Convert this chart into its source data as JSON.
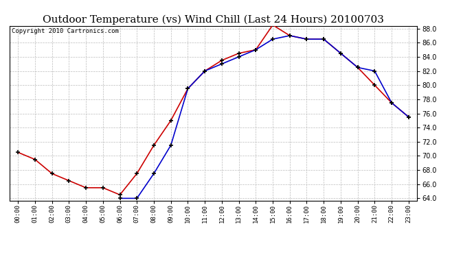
{
  "title": "Outdoor Temperature (vs) Wind Chill (Last 24 Hours) 20100703",
  "copyright": "Copyright 2010 Cartronics.com",
  "hours": [
    "00:00",
    "01:00",
    "02:00",
    "03:00",
    "04:00",
    "05:00",
    "06:00",
    "07:00",
    "08:00",
    "09:00",
    "10:00",
    "11:00",
    "12:00",
    "13:00",
    "14:00",
    "15:00",
    "16:00",
    "17:00",
    "18:00",
    "19:00",
    "20:00",
    "21:00",
    "22:00",
    "23:00"
  ],
  "temp": [
    70.5,
    69.5,
    67.5,
    66.5,
    65.5,
    65.5,
    64.5,
    67.5,
    71.5,
    75.0,
    79.5,
    82.0,
    83.5,
    84.5,
    85.0,
    88.5,
    87.0,
    86.5,
    86.5,
    84.5,
    82.5,
    80.0,
    77.5,
    75.5
  ],
  "wind_chill": [
    null,
    null,
    null,
    null,
    null,
    null,
    64.0,
    64.0,
    67.5,
    71.5,
    79.5,
    82.0,
    83.0,
    84.0,
    85.0,
    86.5,
    87.0,
    86.5,
    86.5,
    84.5,
    82.5,
    82.0,
    77.5,
    75.5
  ],
  "temp_color": "#cc0000",
  "wind_chill_color": "#0000cc",
  "bg_color": "#ffffff",
  "grid_color": "#bbbbbb",
  "ylim_min": 64.0,
  "ylim_max": 88.0,
  "ytick_step": 2.0,
  "title_fontsize": 11,
  "copyright_fontsize": 6.5
}
